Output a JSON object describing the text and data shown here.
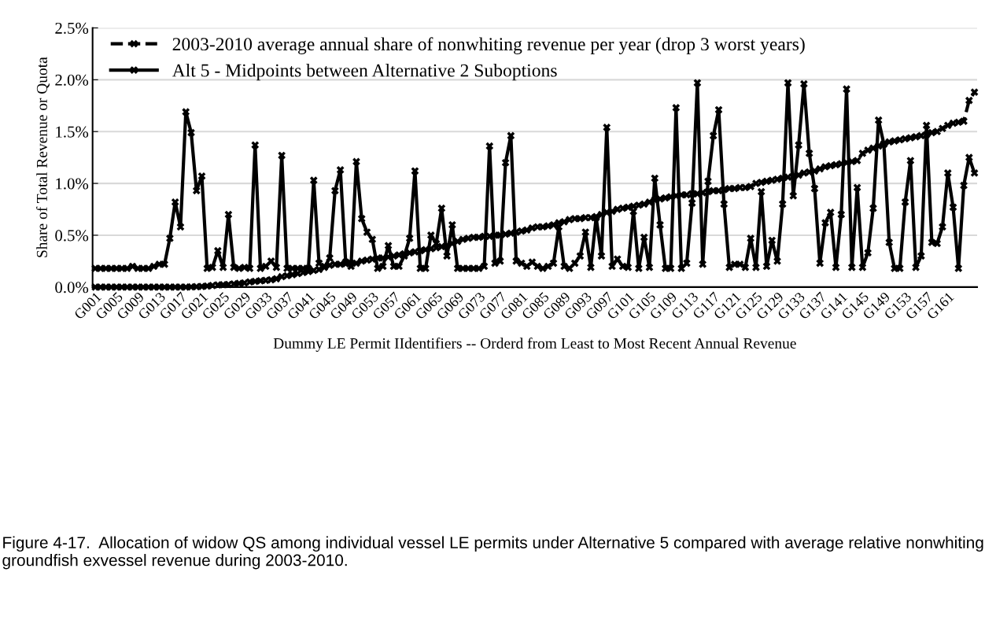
{
  "chart_data": {
    "type": "line",
    "xlabel": "Dummy LE Permit IIdentifiers -- Orderd from Least to Most Recent Annual Revenue",
    "ylabel": "Share of Total Revenue or Quota",
    "annotations": [
      "Figure 4-17.  Allocation of widow QS among individual vessel LE permits under Alternative 5 compared with average relative nonwhiting groundfish exvessel revenue during 2003-2010."
    ],
    "categories": [
      "G001",
      null,
      null,
      null,
      "G005",
      null,
      null,
      null,
      "G009",
      null,
      null,
      null,
      "G013",
      null,
      null,
      null,
      "G017",
      null,
      null,
      null,
      "G021",
      null,
      null,
      null,
      "G025",
      null,
      null,
      null,
      "G029",
      null,
      null,
      null,
      "G033",
      null,
      null,
      null,
      "G037",
      null,
      null,
      null,
      "G041",
      null,
      null,
      null,
      "G045",
      null,
      null,
      null,
      "G049",
      null,
      null,
      null,
      "G053",
      null,
      null,
      null,
      "G057",
      null,
      null,
      null,
      "G061",
      null,
      null,
      null,
      "G065",
      null,
      null,
      null,
      "G069",
      null,
      null,
      null,
      "G073",
      null,
      null,
      null,
      "G077",
      null,
      null,
      null,
      "G081",
      null,
      null,
      null,
      "G085",
      null,
      null,
      null,
      "G089",
      null,
      null,
      null,
      "G093",
      null,
      null,
      null,
      "G097",
      null,
      null,
      null,
      "G101",
      null,
      null,
      null,
      "G105",
      null,
      null,
      null,
      "G109",
      null,
      null,
      null,
      "G113",
      null,
      null,
      null,
      "G117",
      null,
      null,
      null,
      "G121",
      null,
      null,
      null,
      "G125",
      null,
      null,
      null,
      "G129",
      null,
      null,
      null,
      "G133",
      null,
      null,
      null,
      "G137",
      null,
      null,
      null,
      "G141",
      null,
      null,
      null,
      "G145",
      null,
      null,
      null,
      "G149",
      null,
      null,
      null,
      "G153",
      null,
      null,
      null,
      "G157",
      null,
      null,
      null,
      "G161",
      null,
      null,
      null,
      null,
      null
    ],
    "series": [
      {
        "name": "2003-2010 average annual share of nonwhiting revenue per year (drop 3 worst years)",
        "color": "#000000",
        "marker": "cross",
        "line_style": "dashed",
        "values": [
          0,
          0,
          0,
          0,
          0,
          0,
          0,
          0,
          0,
          0,
          0,
          0,
          0,
          0,
          0,
          0,
          0,
          0,
          0.002,
          0.004,
          0.006,
          0.01,
          0.015,
          0.02,
          0.022,
          0.025,
          0.03,
          0.035,
          0.04,
          0.05,
          0.055,
          0.06,
          0.065,
          0.07,
          0.08,
          0.1,
          0.11,
          0.12,
          0.13,
          0.14,
          0.15,
          0.16,
          0.17,
          0.2,
          0.21,
          0.22,
          0.22,
          0.225,
          0.23,
          0.23,
          0.25,
          0.26,
          0.27,
          0.28,
          0.28,
          0.29,
          0.3,
          0.31,
          0.32,
          0.33,
          0.34,
          0.35,
          0.36,
          0.37,
          0.38,
          0.39,
          0.4,
          0.42,
          0.44,
          0.46,
          0.47,
          0.48,
          0.48,
          0.49,
          0.49,
          0.5,
          0.5,
          0.51,
          0.52,
          0.53,
          0.54,
          0.55,
          0.57,
          0.58,
          0.58,
          0.59,
          0.6,
          0.62,
          0.63,
          0.65,
          0.66,
          0.66,
          0.67,
          0.67,
          0.68,
          0.7,
          0.72,
          0.73,
          0.75,
          0.76,
          0.77,
          0.78,
          0.79,
          0.8,
          0.82,
          0.84,
          0.85,
          0.86,
          0.87,
          0.88,
          0.89,
          0.89,
          0.9,
          0.9,
          0.91,
          0.92,
          0.93,
          0.93,
          0.94,
          0.95,
          0.95,
          0.96,
          0.96,
          0.97,
          1.0,
          1.01,
          1.02,
          1.03,
          1.04,
          1.05,
          1.06,
          1.07,
          1.08,
          1.1,
          1.11,
          1.12,
          1.14,
          1.16,
          1.17,
          1.18,
          1.19,
          1.2,
          1.21,
          1.22,
          1.29,
          1.32,
          1.34,
          1.36,
          1.38,
          1.4,
          1.41,
          1.42,
          1.43,
          1.44,
          1.45,
          1.46,
          1.47,
          1.49,
          1.5,
          1.53,
          1.56,
          1.58,
          1.59,
          1.6,
          1.8,
          1.88
        ]
      },
      {
        "name": "Alt 5 - Midpoints between Alternative 2 Suboptions",
        "color": "#000000",
        "marker": "cross",
        "line_style": "solid",
        "values": [
          0.18,
          0.18,
          0.18,
          0.18,
          0.18,
          0.18,
          0.18,
          0.2,
          0.18,
          0.18,
          0.18,
          0.2,
          0.22,
          0.22,
          0.47,
          0.82,
          0.58,
          1.69,
          1.49,
          0.93,
          1.07,
          0.18,
          0.19,
          0.35,
          0.19,
          0.7,
          0.19,
          0.18,
          0.19,
          0.18,
          1.37,
          0.18,
          0.2,
          0.25,
          0.19,
          1.27,
          0.18,
          0.18,
          0.18,
          0.18,
          0.18,
          1.03,
          0.23,
          0.19,
          0.28,
          0.93,
          1.13,
          0.24,
          0.2,
          1.21,
          0.66,
          0.53,
          0.46,
          0.18,
          0.2,
          0.4,
          0.2,
          0.2,
          0.3,
          0.47,
          1.12,
          0.18,
          0.18,
          0.5,
          0.42,
          0.76,
          0.3,
          0.6,
          0.18,
          0.18,
          0.18,
          0.18,
          0.18,
          0.2,
          1.36,
          0.23,
          0.25,
          1.2,
          1.46,
          0.25,
          0.23,
          0.2,
          0.24,
          0.2,
          0.18,
          0.2,
          0.23,
          0.58,
          0.2,
          0.18,
          0.23,
          0.3,
          0.53,
          0.19,
          0.67,
          0.3,
          1.54,
          0.2,
          0.27,
          0.2,
          0.19,
          0.73,
          0.18,
          0.48,
          0.19,
          1.05,
          0.6,
          0.18,
          0.18,
          1.73,
          0.18,
          0.23,
          0.81,
          1.97,
          0.22,
          1.02,
          1.46,
          1.71,
          0.8,
          0.19,
          0.22,
          0.22,
          0.19,
          0.47,
          0.19,
          0.92,
          0.2,
          0.45,
          0.25,
          0.8,
          1.97,
          0.88,
          1.37,
          1.96,
          1.29,
          0.95,
          0.23,
          0.62,
          0.72,
          0.19,
          0.7,
          1.91,
          0.19,
          0.96,
          0.19,
          0.33,
          0.76,
          1.61,
          1.38,
          0.43,
          0.18,
          0.18,
          0.82,
          1.22,
          0.19,
          0.3,
          1.56,
          0.43,
          0.42,
          0.58,
          1.1,
          0.77,
          0.18,
          0.98,
          1.25,
          1.1
        ]
      }
    ],
    "ylim": [
      0,
      2.5
    ],
    "yticks": [
      {
        "value": 0,
        "label": "0.0%"
      },
      {
        "value": 0.5,
        "label": "0.5%"
      },
      {
        "value": 1.0,
        "label": "1.0%"
      },
      {
        "value": 1.5,
        "label": "1.5%"
      },
      {
        "value": 2.0,
        "label": "2.0%"
      },
      {
        "value": 2.5,
        "label": "2.5%"
      }
    ],
    "grid": "y",
    "legend": "top left"
  }
}
